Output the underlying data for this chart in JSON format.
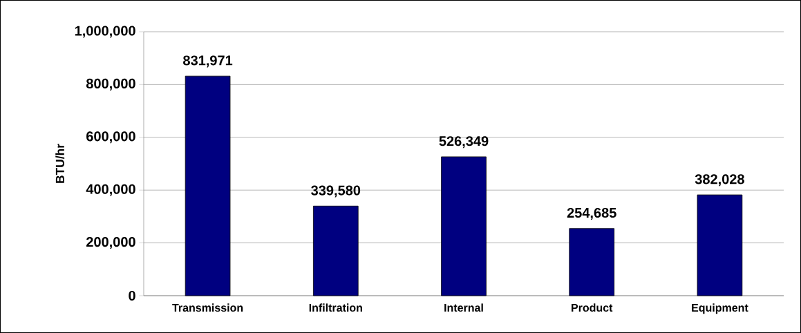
{
  "chart_data": {
    "type": "bar",
    "ylabel": "BTU/hr",
    "categories": [
      "Transmission",
      "Infiltration",
      "Internal",
      "Product",
      "Equipment"
    ],
    "values": [
      831971,
      339580,
      526349,
      254685,
      382028
    ],
    "value_labels": [
      "831,971",
      "339,580",
      "526,349",
      "254,685",
      "382,028"
    ],
    "color": "#000080",
    "ylim": [
      0,
      1000000
    ],
    "yticks": [
      {
        "value": 0,
        "label": "0"
      },
      {
        "value": 200000,
        "label": "200,000"
      },
      {
        "value": 400000,
        "label": "400,000"
      },
      {
        "value": 600000,
        "label": "600,000"
      },
      {
        "value": 800000,
        "label": "800,000"
      },
      {
        "value": 1000000,
        "label": "1,000,000"
      }
    ],
    "grid": "y"
  }
}
